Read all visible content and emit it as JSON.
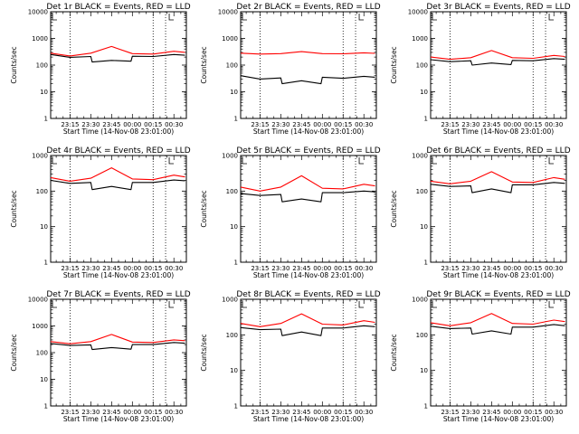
{
  "chart_data": [
    {
      "type": "line",
      "title": "Det 1r BLACK = Events, RED = LLD",
      "xlabel": "Start Time (14-Nov-08 23:01:00)",
      "ylabel": "Counts/sec",
      "y_scale": "log",
      "ylim": [
        1,
        10000
      ],
      "y_ticks": [
        1,
        10,
        100,
        1000,
        10000
      ],
      "y_tick_labels": [
        "1",
        "10",
        "100",
        "1000",
        "10000"
      ],
      "x_ticks": [
        "23:15",
        "23:30",
        "23:45",
        "00:00",
        "00:15",
        "00:30"
      ],
      "xlim": [
        "23:01",
        "00:39"
      ],
      "vertical_markers": [
        "23:15",
        "00:15",
        "00:24"
      ],
      "series": [
        {
          "name": "Events",
          "color": "#000000",
          "points": [
            [
              "23:01",
              250
            ],
            [
              "23:15",
              195
            ],
            [
              "23:30",
              210
            ],
            [
              "23:31",
              130
            ],
            [
              "23:45",
              150
            ],
            [
              "23:59",
              140
            ],
            [
              "00:00",
              215
            ],
            [
              "00:15",
              210
            ],
            [
              "00:30",
              250
            ],
            [
              "00:38",
              235
            ]
          ]
        },
        {
          "name": "LLD",
          "color": "#ff0000",
          "points": [
            [
              "23:01",
              280
            ],
            [
              "23:15",
              220
            ],
            [
              "23:30",
              280
            ],
            [
              "23:45",
              500
            ],
            [
              "00:00",
              270
            ],
            [
              "00:15",
              260
            ],
            [
              "00:30",
              330
            ],
            [
              "00:38",
              300
            ]
          ]
        }
      ]
    },
    {
      "type": "line",
      "title": "Det 2r BLACK = Events, RED = LLD",
      "xlabel": "Start Time (14-Nov-08 23:01:00)",
      "ylabel": "Counts/sec",
      "y_scale": "log",
      "ylim": [
        1,
        10000
      ],
      "y_ticks": [
        1,
        10,
        100,
        1000,
        10000
      ],
      "y_tick_labels": [
        "1",
        "10",
        "100",
        "1000",
        "10000"
      ],
      "x_ticks": [
        "23:15",
        "23:30",
        "23:45",
        "00:00",
        "00:15",
        "00:30"
      ],
      "xlim": [
        "23:01",
        "00:39"
      ],
      "vertical_markers": [
        "23:15",
        "00:15",
        "00:24"
      ],
      "series": [
        {
          "name": "Events",
          "color": "#000000",
          "points": [
            [
              "23:01",
              40
            ],
            [
              "23:15",
              30
            ],
            [
              "23:30",
              33
            ],
            [
              "23:31",
              20
            ],
            [
              "23:45",
              26
            ],
            [
              "23:59",
              20
            ],
            [
              "00:00",
              35
            ],
            [
              "00:15",
              32
            ],
            [
              "00:30",
              38
            ],
            [
              "00:38",
              35
            ]
          ]
        },
        {
          "name": "LLD",
          "color": "#ff0000",
          "points": [
            [
              "23:01",
              280
            ],
            [
              "23:15",
              260
            ],
            [
              "23:30",
              270
            ],
            [
              "23:45",
              320
            ],
            [
              "00:00",
              270
            ],
            [
              "00:15",
              265
            ],
            [
              "00:30",
              290
            ],
            [
              "00:38",
              275
            ]
          ]
        }
      ]
    },
    {
      "type": "line",
      "title": "Det 3r BLACK = Events, RED = LLD",
      "xlabel": "Start Time (14-Nov-08 23:01:00)",
      "ylabel": "Counts/sec",
      "y_scale": "log",
      "ylim": [
        1,
        10000
      ],
      "y_ticks": [
        1,
        10,
        100,
        1000,
        10000
      ],
      "y_tick_labels": [
        "1",
        "10",
        "100",
        "1000",
        "10000"
      ],
      "x_ticks": [
        "23:15",
        "23:30",
        "23:45",
        "00:00",
        "00:15",
        "00:30"
      ],
      "xlim": [
        "23:01",
        "00:39"
      ],
      "vertical_markers": [
        "23:15",
        "00:15",
        "00:24"
      ],
      "series": [
        {
          "name": "Events",
          "color": "#000000",
          "points": [
            [
              "23:01",
              160
            ],
            [
              "23:15",
              135
            ],
            [
              "23:30",
              145
            ],
            [
              "23:31",
              100
            ],
            [
              "23:45",
              120
            ],
            [
              "23:59",
              105
            ],
            [
              "00:00",
              150
            ],
            [
              "00:15",
              145
            ],
            [
              "00:30",
              175
            ],
            [
              "00:38",
              165
            ]
          ]
        },
        {
          "name": "LLD",
          "color": "#ff0000",
          "points": [
            [
              "23:01",
              200
            ],
            [
              "23:15",
              165
            ],
            [
              "23:30",
              190
            ],
            [
              "23:45",
              350
            ],
            [
              "00:00",
              190
            ],
            [
              "00:15",
              180
            ],
            [
              "00:30",
              230
            ],
            [
              "00:38",
              210
            ]
          ]
        }
      ]
    },
    {
      "type": "line",
      "title": "Det 4r BLACK = Events, RED = LLD",
      "xlabel": "Start Time (14-Nov-08 23:01:00)",
      "ylabel": "Counts/sec",
      "y_scale": "log",
      "ylim": [
        1,
        1000
      ],
      "y_ticks": [
        1,
        10,
        100,
        1000
      ],
      "y_tick_labels": [
        "1",
        "10",
        "100",
        "1000"
      ],
      "x_ticks": [
        "23:15",
        "23:30",
        "23:45",
        "00:00",
        "00:15",
        "00:30"
      ],
      "xlim": [
        "23:01",
        "00:39"
      ],
      "vertical_markers": [
        "23:15",
        "00:15",
        "00:24"
      ],
      "series": [
        {
          "name": "Events",
          "color": "#000000",
          "points": [
            [
              "23:01",
              200
            ],
            [
              "23:15",
              165
            ],
            [
              "23:30",
              175
            ],
            [
              "23:31",
              110
            ],
            [
              "23:45",
              135
            ],
            [
              "23:59",
              110
            ],
            [
              "00:00",
              175
            ],
            [
              "00:15",
              175
            ],
            [
              "00:30",
              205
            ],
            [
              "00:38",
              195
            ]
          ]
        },
        {
          "name": "LLD",
          "color": "#ff0000",
          "points": [
            [
              "23:01",
              240
            ],
            [
              "23:15",
              190
            ],
            [
              "23:30",
              230
            ],
            [
              "23:45",
              450
            ],
            [
              "00:00",
              220
            ],
            [
              "00:15",
              210
            ],
            [
              "00:30",
              280
            ],
            [
              "00:38",
              250
            ]
          ]
        }
      ]
    },
    {
      "type": "line",
      "title": "Det 5r BLACK = Events, RED = LLD",
      "xlabel": "Start Time (14-Nov-08 23:01:00)",
      "ylabel": "Counts/sec",
      "y_scale": "log",
      "ylim": [
        1,
        1000
      ],
      "y_ticks": [
        1,
        10,
        100,
        1000
      ],
      "y_tick_labels": [
        "1",
        "10",
        "100",
        "1000"
      ],
      "x_ticks": [
        "23:15",
        "23:30",
        "23:45",
        "00:00",
        "00:15",
        "00:30"
      ],
      "xlim": [
        "23:01",
        "00:39"
      ],
      "vertical_markers": [
        "23:15",
        "00:15",
        "00:24"
      ],
      "series": [
        {
          "name": "Events",
          "color": "#000000",
          "points": [
            [
              "23:01",
              85
            ],
            [
              "23:15",
              75
            ],
            [
              "23:30",
              80
            ],
            [
              "23:31",
              50
            ],
            [
              "23:45",
              60
            ],
            [
              "23:59",
              50
            ],
            [
              "00:00",
              90
            ],
            [
              "00:15",
              90
            ],
            [
              "00:30",
              100
            ],
            [
              "00:38",
              95
            ]
          ]
        },
        {
          "name": "LLD",
          "color": "#ff0000",
          "points": [
            [
              "23:01",
              130
            ],
            [
              "23:15",
              100
            ],
            [
              "23:30",
              130
            ],
            [
              "23:45",
              270
            ],
            [
              "00:00",
              120
            ],
            [
              "00:15",
              115
            ],
            [
              "00:30",
              155
            ],
            [
              "00:38",
              140
            ]
          ]
        }
      ]
    },
    {
      "type": "line",
      "title": "Det 6r BLACK = Events, RED = LLD",
      "xlabel": "Start Time (14-Nov-08 23:01:00)",
      "ylabel": "Counts/sec",
      "y_scale": "log",
      "ylim": [
        1,
        1000
      ],
      "y_ticks": [
        1,
        10,
        100,
        1000
      ],
      "y_tick_labels": [
        "1",
        "10",
        "100",
        "1000"
      ],
      "x_ticks": [
        "23:15",
        "23:30",
        "23:45",
        "00:00",
        "00:15",
        "00:30"
      ],
      "xlim": [
        "23:01",
        "00:39"
      ],
      "vertical_markers": [
        "23:15",
        "00:15",
        "00:24"
      ],
      "series": [
        {
          "name": "Events",
          "color": "#000000",
          "points": [
            [
              "23:01",
              155
            ],
            [
              "23:15",
              135
            ],
            [
              "23:30",
              140
            ],
            [
              "23:31",
              90
            ],
            [
              "23:45",
              115
            ],
            [
              "23:59",
              90
            ],
            [
              "00:00",
              150
            ],
            [
              "00:15",
              150
            ],
            [
              "00:30",
              175
            ],
            [
              "00:38",
              165
            ]
          ]
        },
        {
          "name": "LLD",
          "color": "#ff0000",
          "points": [
            [
              "23:01",
              190
            ],
            [
              "23:15",
              160
            ],
            [
              "23:30",
              190
            ],
            [
              "23:45",
              350
            ],
            [
              "00:00",
              180
            ],
            [
              "00:15",
              175
            ],
            [
              "00:30",
              240
            ],
            [
              "00:38",
              215
            ]
          ]
        }
      ]
    },
    {
      "type": "line",
      "title": "Det 7r BLACK = Events, RED = LLD",
      "xlabel": "Start Time (14-Nov-08 23:01:00)",
      "ylabel": "Counts/sec",
      "y_scale": "log",
      "ylim": [
        1,
        10000
      ],
      "y_ticks": [
        1,
        10,
        100,
        1000,
        10000
      ],
      "y_tick_labels": [
        "1",
        "10",
        "100",
        "1000",
        "10000"
      ],
      "x_ticks": [
        "23:15",
        "23:30",
        "23:45",
        "00:00",
        "00:15",
        "00:30"
      ],
      "xlim": [
        "23:01",
        "00:39"
      ],
      "vertical_markers": [
        "23:15",
        "00:15",
        "00:24"
      ],
      "series": [
        {
          "name": "Events",
          "color": "#000000",
          "points": [
            [
              "23:01",
              220
            ],
            [
              "23:15",
              185
            ],
            [
              "23:30",
              195
            ],
            [
              "23:31",
              130
            ],
            [
              "23:45",
              155
            ],
            [
              "23:59",
              135
            ],
            [
              "00:00",
              200
            ],
            [
              "00:15",
              200
            ],
            [
              "00:30",
              240
            ],
            [
              "00:38",
              225
            ]
          ]
        },
        {
          "name": "LLD",
          "color": "#ff0000",
          "points": [
            [
              "23:01",
              260
            ],
            [
              "23:15",
              215
            ],
            [
              "23:30",
              260
            ],
            [
              "23:45",
              480
            ],
            [
              "00:00",
              250
            ],
            [
              "00:15",
              240
            ],
            [
              "00:30",
              300
            ],
            [
              "00:38",
              280
            ]
          ]
        }
      ]
    },
    {
      "type": "line",
      "title": "Det 8r BLACK = Events, RED = LLD",
      "xlabel": "Start Time (14-Nov-08 23:01:00)",
      "ylabel": "Counts/sec",
      "y_scale": "log",
      "ylim": [
        1,
        1000
      ],
      "y_ticks": [
        1,
        10,
        100,
        1000
      ],
      "y_tick_labels": [
        "1",
        "10",
        "100",
        "1000"
      ],
      "x_ticks": [
        "23:15",
        "23:30",
        "23:45",
        "00:00",
        "00:15",
        "00:30"
      ],
      "xlim": [
        "23:01",
        "00:39"
      ],
      "vertical_markers": [
        "23:15",
        "00:15",
        "00:24"
      ],
      "series": [
        {
          "name": "Events",
          "color": "#000000",
          "points": [
            [
              "23:01",
              160
            ],
            [
              "23:15",
              140
            ],
            [
              "23:30",
              145
            ],
            [
              "23:31",
              95
            ],
            [
              "23:45",
              120
            ],
            [
              "23:59",
              95
            ],
            [
              "00:00",
              155
            ],
            [
              "00:15",
              155
            ],
            [
              "00:30",
              180
            ],
            [
              "00:38",
              170
            ]
          ]
        },
        {
          "name": "LLD",
          "color": "#ff0000",
          "points": [
            [
              "23:01",
              210
            ],
            [
              "23:15",
              170
            ],
            [
              "23:30",
              210
            ],
            [
              "23:45",
              390
            ],
            [
              "00:00",
              200
            ],
            [
              "00:15",
              190
            ],
            [
              "00:30",
              250
            ],
            [
              "00:38",
              225
            ]
          ]
        }
      ]
    },
    {
      "type": "line",
      "title": "Det 9r BLACK = Events, RED = LLD",
      "xlabel": "Start Time (14-Nov-08 23:01:00)",
      "ylabel": "Counts/sec",
      "y_scale": "log",
      "ylim": [
        1,
        1000
      ],
      "y_ticks": [
        1,
        10,
        100,
        1000
      ],
      "y_tick_labels": [
        "1",
        "10",
        "100",
        "1000"
      ],
      "x_ticks": [
        "23:15",
        "23:30",
        "23:45",
        "00:00",
        "00:15",
        "00:30"
      ],
      "xlim": [
        "23:01",
        "00:39"
      ],
      "vertical_markers": [
        "23:15",
        "00:15",
        "00:24"
      ],
      "series": [
        {
          "name": "Events",
          "color": "#000000",
          "points": [
            [
              "23:01",
              175
            ],
            [
              "23:15",
              150
            ],
            [
              "23:30",
              155
            ],
            [
              "23:31",
              105
            ],
            [
              "23:45",
              130
            ],
            [
              "23:59",
              105
            ],
            [
              "00:00",
              165
            ],
            [
              "00:15",
              165
            ],
            [
              "00:30",
              195
            ],
            [
              "00:38",
              180
            ]
          ]
        },
        {
          "name": "LLD",
          "color": "#ff0000",
          "points": [
            [
              "23:01",
              220
            ],
            [
              "23:15",
              180
            ],
            [
              "23:30",
              220
            ],
            [
              "23:45",
              400
            ],
            [
              "00:00",
              210
            ],
            [
              "00:15",
              200
            ],
            [
              "00:30",
              260
            ],
            [
              "00:38",
              235
            ]
          ]
        }
      ]
    }
  ]
}
